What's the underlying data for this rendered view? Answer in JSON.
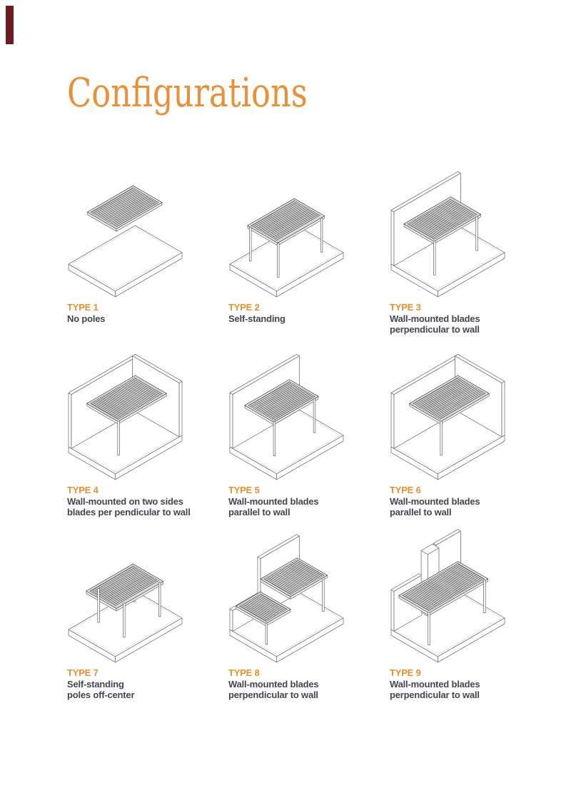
{
  "page": {
    "title": "Configurations",
    "accent_color": "#E8913A",
    "text_color": "#45454D",
    "corner_mark_color": "#701D21"
  },
  "types": [
    {
      "label": "TYPE 1",
      "desc": [
        "No poles"
      ],
      "figure": "no-poles"
    },
    {
      "label": "TYPE 2",
      "desc": [
        "Self-standing"
      ],
      "figure": "self-standing"
    },
    {
      "label": "TYPE 3",
      "desc": [
        "Wall-mounted blades",
        "perpendicular to wall"
      ],
      "figure": "wall-perpendicular"
    },
    {
      "label": "TYPE 4",
      "desc": [
        "Wall-mounted on two sides",
        "blades per pendicular to wall"
      ],
      "figure": "two-walls-perpendicular"
    },
    {
      "label": "TYPE 5",
      "desc": [
        "Wall-mounted blades",
        "parallel to wall"
      ],
      "figure": "wall-parallel"
    },
    {
      "label": "TYPE 6",
      "desc": [
        "Wall-mounted blades",
        "parallel to wall"
      ],
      "figure": "two-walls-parallel"
    },
    {
      "label": "TYPE 7",
      "desc": [
        "Self-standing",
        "poles off-center"
      ],
      "figure": "self-standing-offcenter"
    },
    {
      "label": "TYPE 8",
      "desc": [
        "Wall-mounted blades",
        "perpendicular to wall"
      ],
      "figure": "stepped-wall-perpendicular"
    },
    {
      "label": "TYPE 9",
      "desc": [
        "Wall-mounted blades",
        "perpendicular to wall"
      ],
      "figure": "wall-column-perpendicular"
    }
  ]
}
